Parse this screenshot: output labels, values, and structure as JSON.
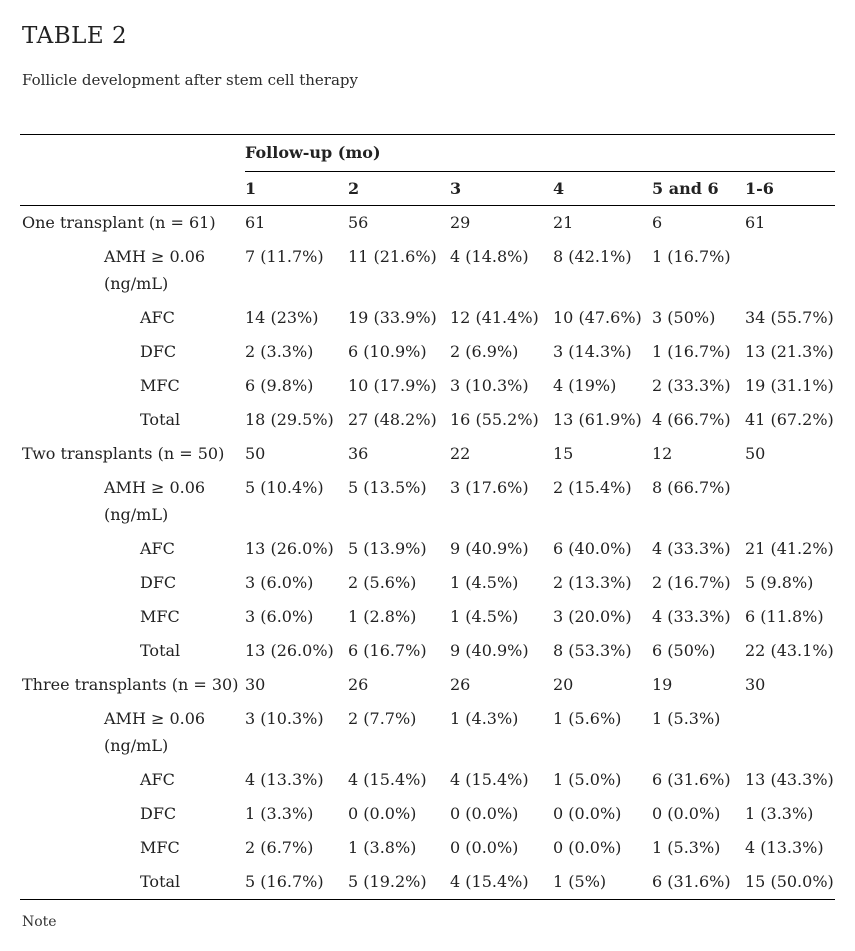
{
  "page": {
    "title": "TABLE 2",
    "caption": "Follicle development after stem cell therapy",
    "footnote": "Note"
  },
  "colors": {
    "background": "#ffffff",
    "text": "#222222",
    "border": "#000000"
  },
  "table": {
    "group_header": "Follow-up (mo)",
    "columns": [
      "1",
      "2",
      "3",
      "4",
      "5 and 6",
      "1-6"
    ],
    "rows": [
      {
        "label": "One transplant (n = 61)",
        "indent": 0,
        "values": [
          "61",
          "56",
          "29",
          "21",
          "6",
          "61"
        ]
      },
      {
        "label": "AMH ≥ 0.06\n(ng/mL)",
        "indent": 1,
        "values": [
          "7 (11.7%)",
          "11 (21.6%)",
          "4 (14.8%)",
          "8 (42.1%)",
          "1 (16.7%)",
          ""
        ]
      },
      {
        "label": "AFC",
        "indent": 2,
        "values": [
          "14 (23%)",
          "19 (33.9%)",
          "12 (41.4%)",
          "10 (47.6%)",
          "3 (50%)",
          "34 (55.7%)"
        ]
      },
      {
        "label": "DFC",
        "indent": 2,
        "values": [
          "2 (3.3%)",
          "6 (10.9%)",
          "2 (6.9%)",
          "3 (14.3%)",
          "1 (16.7%)",
          "13 (21.3%)"
        ]
      },
      {
        "label": "MFC",
        "indent": 2,
        "values": [
          "6 (9.8%)",
          "10 (17.9%)",
          "3 (10.3%)",
          "4 (19%)",
          "2 (33.3%)",
          "19 (31.1%)"
        ]
      },
      {
        "label": "Total",
        "indent": 2,
        "values": [
          "18 (29.5%)",
          "27 (48.2%)",
          "16 (55.2%)",
          "13 (61.9%)",
          "4 (66.7%)",
          "41 (67.2%)"
        ]
      },
      {
        "label": "Two transplants (n = 50)",
        "indent": 0,
        "values": [
          "50",
          "36",
          "22",
          "15",
          "12",
          "50"
        ]
      },
      {
        "label": "AMH ≥ 0.06\n(ng/mL)",
        "indent": 1,
        "values": [
          "5 (10.4%)",
          "5 (13.5%)",
          "3 (17.6%)",
          "2 (15.4%)",
          "8 (66.7%)",
          ""
        ]
      },
      {
        "label": "AFC",
        "indent": 2,
        "values": [
          "13 (26.0%)",
          "5 (13.9%)",
          "9 (40.9%)",
          "6 (40.0%)",
          "4 (33.3%)",
          "21 (41.2%)"
        ]
      },
      {
        "label": "DFC",
        "indent": 2,
        "values": [
          "3 (6.0%)",
          "2 (5.6%)",
          "1 (4.5%)",
          "2 (13.3%)",
          "2 (16.7%)",
          "5 (9.8%)"
        ]
      },
      {
        "label": "MFC",
        "indent": 2,
        "values": [
          "3 (6.0%)",
          "1 (2.8%)",
          "1 (4.5%)",
          "3 (20.0%)",
          "4 (33.3%)",
          "6 (11.8%)"
        ]
      },
      {
        "label": "Total",
        "indent": 2,
        "values": [
          "13 (26.0%)",
          "6 (16.7%)",
          "9 (40.9%)",
          "8 (53.3%)",
          "6 (50%)",
          "22 (43.1%)"
        ]
      },
      {
        "label": "Three transplants (n = 30)",
        "indent": 0,
        "values": [
          "30",
          "26",
          "26",
          "20",
          "19",
          "30"
        ]
      },
      {
        "label": "AMH ≥ 0.06\n(ng/mL)",
        "indent": 1,
        "values": [
          "3 (10.3%)",
          "2 (7.7%)",
          "1 (4.3%)",
          "1 (5.6%)",
          "1 (5.3%)",
          ""
        ]
      },
      {
        "label": "AFC",
        "indent": 2,
        "values": [
          "4 (13.3%)",
          "4 (15.4%)",
          "4 (15.4%)",
          "1 (5.0%)",
          "6 (31.6%)",
          "13 (43.3%)"
        ]
      },
      {
        "label": "DFC",
        "indent": 2,
        "values": [
          "1 (3.3%)",
          "0 (0.0%)",
          "0 (0.0%)",
          "0 (0.0%)",
          "0 (0.0%)",
          "1 (3.3%)"
        ]
      },
      {
        "label": "MFC",
        "indent": 2,
        "values": [
          "2 (6.7%)",
          "1 (3.8%)",
          "0 (0.0%)",
          "0 (0.0%)",
          "1 (5.3%)",
          "4 (13.3%)"
        ]
      },
      {
        "label": "Total",
        "indent": 2,
        "values": [
          "5 (16.7%)",
          "5 (19.2%)",
          "4 (15.4%)",
          "1 (5%)",
          "6 (31.6%)",
          "15 (50.0%)"
        ]
      }
    ]
  }
}
